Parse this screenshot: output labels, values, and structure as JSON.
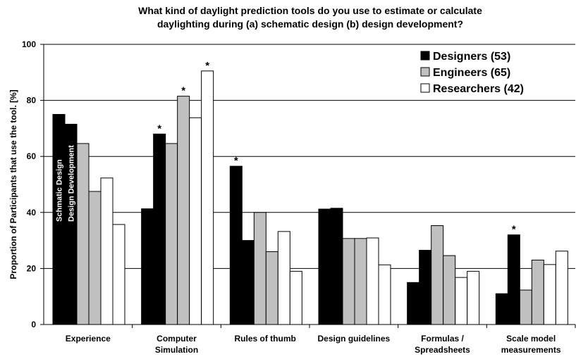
{
  "chart_data": {
    "type": "bar",
    "title": [
      "What kind of daylight prediction tools do you use to estimate or calculate",
      "daylighting during  (a) schematic design (b) design development?"
    ],
    "ylabel": "Proportion of Participants that use the tool. [%]",
    "phase_labels": [
      "Schmatic Design",
      "Design Development"
    ],
    "categories": [
      [
        "Experience"
      ],
      [
        "Computer",
        "Simulation"
      ],
      [
        "Rules of thumb"
      ],
      [
        "Design guidelines"
      ],
      [
        "Formulas /",
        "Spreadsheets"
      ],
      [
        "Scale model",
        "measurements"
      ]
    ],
    "series": [
      {
        "name": "Designers (53)",
        "color": "#000000",
        "values": [
          [
            75,
            71.5
          ],
          [
            41.3,
            68
          ],
          [
            56.5,
            30
          ],
          [
            41.2,
            41.5
          ],
          [
            15,
            26.5
          ],
          [
            11,
            32
          ]
        ],
        "marks": [
          [
            null,
            null
          ],
          [
            null,
            "*"
          ],
          [
            "*",
            null
          ],
          [
            null,
            null
          ],
          [
            null,
            null
          ],
          [
            null,
            "*"
          ]
        ]
      },
      {
        "name": "Engineers (65)",
        "color": "#c0c0c0",
        "values": [
          [
            64.6,
            47.5
          ],
          [
            64.6,
            81.5
          ],
          [
            40,
            26
          ],
          [
            30.7,
            30.7
          ],
          [
            35.3,
            24.6
          ],
          [
            12.3,
            23
          ]
        ],
        "marks": [
          [
            null,
            null
          ],
          [
            null,
            "*"
          ],
          [
            null,
            null
          ],
          [
            null,
            null
          ],
          [
            null,
            null
          ],
          [
            null,
            null
          ]
        ]
      },
      {
        "name": "Researchers (42)",
        "color": "#ffffff",
        "values": [
          [
            52.3,
            35.7
          ],
          [
            73.8,
            90.5
          ],
          [
            33.2,
            19
          ],
          [
            30.9,
            21.3
          ],
          [
            16.8,
            19
          ],
          [
            21.4,
            26.2
          ]
        ],
        "marks": [
          [
            null,
            null
          ],
          [
            null,
            "*"
          ],
          [
            null,
            null
          ],
          [
            null,
            null
          ],
          [
            null,
            null
          ],
          [
            null,
            null
          ]
        ]
      }
    ],
    "ylim": [
      0,
      100
    ],
    "yticks": [
      0,
      20,
      40,
      60,
      80,
      100
    ],
    "grid": true,
    "legend": "top-right"
  }
}
